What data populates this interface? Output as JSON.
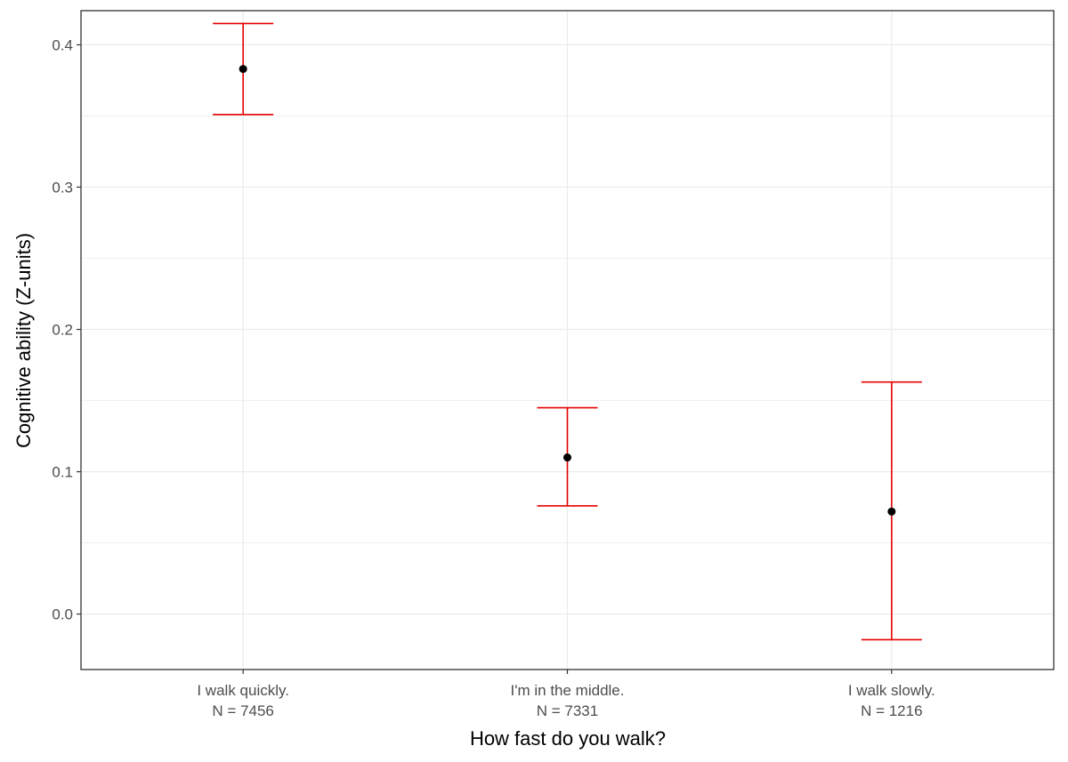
{
  "chart_data": {
    "type": "scatter",
    "subtype": "point-with-error-bars",
    "title": "",
    "xlabel": "How fast do you walk?",
    "ylabel": "Cognitive ability (Z-units)",
    "ylim": [
      -0.039,
      0.424
    ],
    "y_ticks": [
      0.0,
      0.1,
      0.2,
      0.3,
      0.4
    ],
    "y_tick_labels": [
      "0.0",
      "0.1",
      "0.2",
      "0.3",
      "0.4"
    ],
    "y_minor_ticks": [
      0.05,
      0.15,
      0.25,
      0.35
    ],
    "grid": true,
    "categories": [
      {
        "label": "I walk quickly.",
        "n_label": "N = 7456",
        "value": 0.383,
        "lower": 0.351,
        "upper": 0.415
      },
      {
        "label": "I'm in the middle.",
        "n_label": "N = 7331",
        "value": 0.11,
        "lower": 0.076,
        "upper": 0.145
      },
      {
        "label": "I walk slowly.",
        "n_label": "N = 1216",
        "value": 0.072,
        "lower": -0.018,
        "upper": 0.163
      }
    ],
    "colors": {
      "point": "#000000",
      "errorbar": "#e60000",
      "grid": "#ebebeb",
      "panel_border": "#333333",
      "tick_text": "#4d4d4d"
    }
  }
}
